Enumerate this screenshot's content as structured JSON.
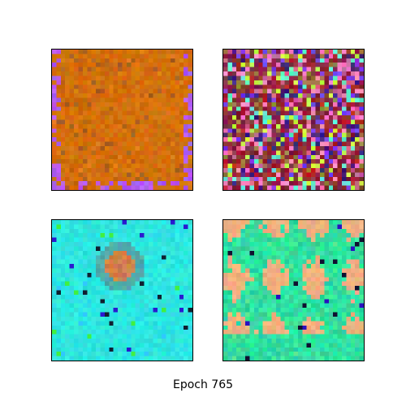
{
  "caption": "Epoch 765",
  "grid": {
    "rows": 2,
    "cols": 2,
    "pixels_per_side": 32
  },
  "panels": [
    {
      "id": "sample-1",
      "description_key": "orange-texture",
      "base": "#d4700c",
      "edge_color": "#b25af0",
      "accent_colors": [
        "#c86a10",
        "#e07a18",
        "#a85f22"
      ]
    },
    {
      "id": "sample-2",
      "description_key": "multicolor-noise",
      "base": "#8a2a3a",
      "accent_colors": [
        "#7a3cf0",
        "#b0202a",
        "#ff80c0",
        "#9a8040",
        "#c8ff40",
        "#60f0d0",
        "#d06090",
        "#402080"
      ]
    },
    {
      "id": "sample-3",
      "description_key": "cyan-with-orange-blob",
      "base": "#2ee6e0",
      "blob_color": "#d0804a",
      "accent_colors": [
        "#2a1ad0",
        "#40f040",
        "#102030",
        "#30c8ff"
      ]
    },
    {
      "id": "sample-4",
      "description_key": "green-with-peach-patches",
      "base": "#30e0a0",
      "patch_color": "#f0b080",
      "accent_colors": [
        "#2a10c0",
        "#40d0a0",
        "#60e890",
        "#101030"
      ]
    }
  ]
}
